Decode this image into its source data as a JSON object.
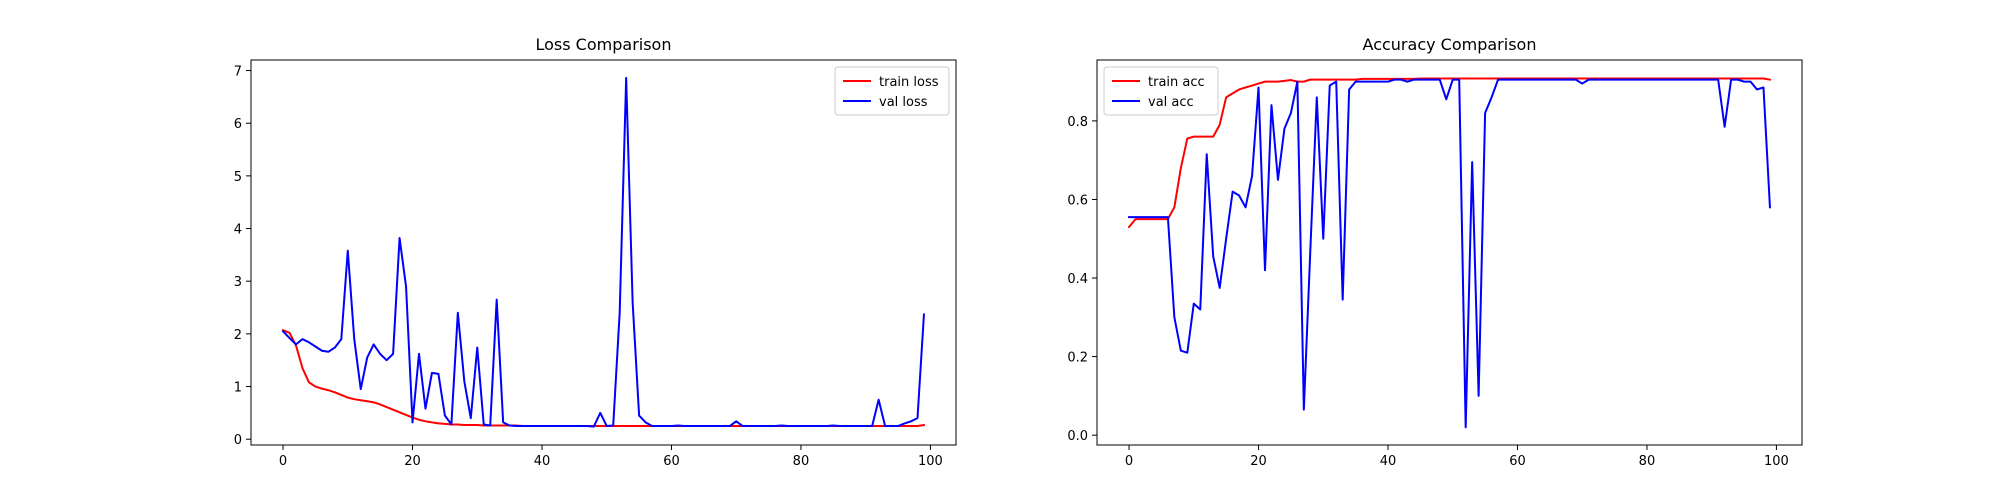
{
  "chart_data": [
    {
      "type": "line",
      "title": "Loss Comparison",
      "xlabel": "",
      "ylabel": "",
      "xlim": [
        -4.95,
        103.95
      ],
      "ylim": [
        -0.11,
        7.2
      ],
      "xticks": [
        0,
        20,
        40,
        60,
        80,
        100
      ],
      "xtick_labels": [
        "0",
        "20",
        "40",
        "60",
        "80",
        "100"
      ],
      "yticks": [
        0,
        1,
        2,
        3,
        4,
        5,
        6,
        7
      ],
      "ytick_labels": [
        "0",
        "1",
        "2",
        "3",
        "4",
        "5",
        "6",
        "7"
      ],
      "grid": false,
      "legend_position": "top-right",
      "x": [
        0,
        1,
        2,
        3,
        4,
        5,
        6,
        7,
        8,
        9,
        10,
        11,
        12,
        13,
        14,
        15,
        16,
        17,
        18,
        19,
        20,
        21,
        22,
        23,
        24,
        25,
        26,
        27,
        28,
        29,
        30,
        31,
        32,
        33,
        34,
        35,
        36,
        37,
        38,
        39,
        40,
        41,
        42,
        43,
        44,
        45,
        46,
        47,
        48,
        49,
        50,
        51,
        52,
        53,
        54,
        55,
        56,
        57,
        58,
        59,
        60,
        61,
        62,
        63,
        64,
        65,
        66,
        67,
        68,
        69,
        70,
        71,
        72,
        73,
        74,
        75,
        76,
        77,
        78,
        79,
        80,
        81,
        82,
        83,
        84,
        85,
        86,
        87,
        88,
        89,
        90,
        91,
        92,
        93,
        94,
        95,
        96,
        97,
        98,
        99
      ],
      "series": [
        {
          "name": "train loss",
          "color": "#ff0000",
          "values": [
            2.07,
            2.02,
            1.78,
            1.35,
            1.08,
            1.0,
            0.96,
            0.93,
            0.89,
            0.84,
            0.79,
            0.76,
            0.74,
            0.72,
            0.7,
            0.66,
            0.61,
            0.56,
            0.51,
            0.46,
            0.41,
            0.37,
            0.34,
            0.32,
            0.3,
            0.29,
            0.28,
            0.28,
            0.27,
            0.27,
            0.27,
            0.26,
            0.26,
            0.26,
            0.26,
            0.26,
            0.26,
            0.25,
            0.25,
            0.25,
            0.25,
            0.25,
            0.25,
            0.25,
            0.25,
            0.25,
            0.25,
            0.25,
            0.25,
            0.25,
            0.25,
            0.25,
            0.25,
            0.25,
            0.25,
            0.25,
            0.25,
            0.25,
            0.25,
            0.25,
            0.25,
            0.25,
            0.25,
            0.25,
            0.25,
            0.25,
            0.25,
            0.25,
            0.25,
            0.25,
            0.25,
            0.25,
            0.25,
            0.25,
            0.25,
            0.25,
            0.25,
            0.25,
            0.25,
            0.25,
            0.25,
            0.25,
            0.25,
            0.25,
            0.25,
            0.25,
            0.25,
            0.25,
            0.25,
            0.25,
            0.25,
            0.25,
            0.25,
            0.25,
            0.25,
            0.25,
            0.25,
            0.25,
            0.25,
            0.27
          ]
        },
        {
          "name": "val loss",
          "color": "#0000ff",
          "values": [
            2.05,
            1.92,
            1.8,
            1.9,
            1.84,
            1.76,
            1.68,
            1.66,
            1.74,
            1.9,
            3.58,
            1.9,
            0.95,
            1.55,
            1.8,
            1.62,
            1.5,
            1.62,
            3.82,
            2.9,
            0.32,
            1.62,
            0.58,
            1.26,
            1.24,
            0.45,
            0.28,
            2.4,
            1.1,
            0.4,
            1.74,
            0.28,
            0.26,
            2.65,
            0.32,
            0.26,
            0.25,
            0.25,
            0.25,
            0.25,
            0.25,
            0.25,
            0.25,
            0.25,
            0.25,
            0.25,
            0.25,
            0.25,
            0.24,
            0.5,
            0.25,
            0.26,
            2.4,
            6.86,
            2.6,
            0.45,
            0.32,
            0.25,
            0.25,
            0.25,
            0.25,
            0.26,
            0.25,
            0.25,
            0.25,
            0.25,
            0.25,
            0.25,
            0.25,
            0.25,
            0.34,
            0.25,
            0.25,
            0.25,
            0.25,
            0.25,
            0.25,
            0.26,
            0.25,
            0.25,
            0.25,
            0.25,
            0.25,
            0.25,
            0.25,
            0.26,
            0.25,
            0.25,
            0.25,
            0.25,
            0.25,
            0.25,
            0.75,
            0.25,
            0.25,
            0.25,
            0.3,
            0.34,
            0.4,
            2.37
          ]
        }
      ]
    },
    {
      "type": "line",
      "title": "Accuracy Comparison",
      "xlabel": "",
      "ylabel": "",
      "xlim": [
        -4.95,
        103.95
      ],
      "ylim": [
        -0.025,
        0.955
      ],
      "xticks": [
        0,
        20,
        40,
        60,
        80,
        100
      ],
      "xtick_labels": [
        "0",
        "20",
        "40",
        "60",
        "80",
        "100"
      ],
      "yticks": [
        0.0,
        0.2,
        0.4,
        0.6,
        0.8
      ],
      "ytick_labels": [
        "0.0",
        "0.2",
        "0.4",
        "0.6",
        "0.8"
      ],
      "grid": false,
      "legend_position": "top-left",
      "x": [
        0,
        1,
        2,
        3,
        4,
        5,
        6,
        7,
        8,
        9,
        10,
        11,
        12,
        13,
        14,
        15,
        16,
        17,
        18,
        19,
        20,
        21,
        22,
        23,
        24,
        25,
        26,
        27,
        28,
        29,
        30,
        31,
        32,
        33,
        34,
        35,
        36,
        37,
        38,
        39,
        40,
        41,
        42,
        43,
        44,
        45,
        46,
        47,
        48,
        49,
        50,
        51,
        52,
        53,
        54,
        55,
        56,
        57,
        58,
        59,
        60,
        61,
        62,
        63,
        64,
        65,
        66,
        67,
        68,
        69,
        70,
        71,
        72,
        73,
        74,
        75,
        76,
        77,
        78,
        79,
        80,
        81,
        82,
        83,
        84,
        85,
        86,
        87,
        88,
        89,
        90,
        91,
        92,
        93,
        94,
        95,
        96,
        97,
        98,
        99
      ],
      "series": [
        {
          "name": "train acc",
          "color": "#ff0000",
          "values": [
            0.53,
            0.55,
            0.55,
            0.55,
            0.55,
            0.55,
            0.55,
            0.58,
            0.68,
            0.755,
            0.76,
            0.76,
            0.76,
            0.76,
            0.79,
            0.86,
            0.87,
            0.88,
            0.885,
            0.89,
            0.895,
            0.9,
            0.9,
            0.9,
            0.902,
            0.904,
            0.9,
            0.9,
            0.905,
            0.905,
            0.905,
            0.905,
            0.905,
            0.905,
            0.905,
            0.905,
            0.907,
            0.907,
            0.907,
            0.907,
            0.907,
            0.907,
            0.907,
            0.907,
            0.907,
            0.908,
            0.908,
            0.908,
            0.908,
            0.908,
            0.908,
            0.908,
            0.908,
            0.908,
            0.908,
            0.908,
            0.908,
            0.908,
            0.908,
            0.908,
            0.908,
            0.908,
            0.908,
            0.908,
            0.908,
            0.908,
            0.908,
            0.908,
            0.908,
            0.908,
            0.908,
            0.908,
            0.908,
            0.908,
            0.908,
            0.908,
            0.908,
            0.908,
            0.908,
            0.908,
            0.908,
            0.908,
            0.908,
            0.908,
            0.908,
            0.908,
            0.908,
            0.908,
            0.908,
            0.908,
            0.908,
            0.908,
            0.908,
            0.908,
            0.908,
            0.908,
            0.908,
            0.908,
            0.908,
            0.905
          ]
        },
        {
          "name": "val acc",
          "color": "#0000ff",
          "values": [
            0.555,
            0.555,
            0.555,
            0.555,
            0.555,
            0.555,
            0.555,
            0.3,
            0.215,
            0.21,
            0.335,
            0.32,
            0.715,
            0.455,
            0.375,
            0.5,
            0.62,
            0.61,
            0.58,
            0.66,
            0.885,
            0.42,
            0.84,
            0.65,
            0.78,
            0.82,
            0.9,
            0.065,
            0.47,
            0.86,
            0.5,
            0.89,
            0.9,
            0.345,
            0.88,
            0.9,
            0.9,
            0.9,
            0.9,
            0.9,
            0.9,
            0.905,
            0.905,
            0.9,
            0.905,
            0.905,
            0.905,
            0.905,
            0.905,
            0.855,
            0.905,
            0.905,
            0.02,
            0.695,
            0.1,
            0.82,
            0.86,
            0.905,
            0.905,
            0.905,
            0.905,
            0.905,
            0.905,
            0.905,
            0.905,
            0.905,
            0.905,
            0.905,
            0.905,
            0.905,
            0.895,
            0.905,
            0.905,
            0.905,
            0.905,
            0.905,
            0.905,
            0.905,
            0.905,
            0.905,
            0.905,
            0.905,
            0.905,
            0.905,
            0.905,
            0.905,
            0.905,
            0.905,
            0.905,
            0.905,
            0.905,
            0.905,
            0.785,
            0.905,
            0.905,
            0.9,
            0.9,
            0.88,
            0.885,
            0.58
          ]
        }
      ]
    }
  ]
}
